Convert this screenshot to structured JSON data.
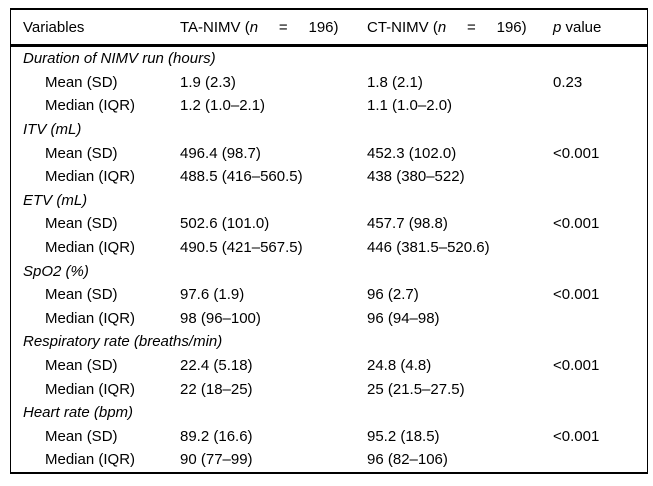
{
  "header": {
    "variables": "Variables",
    "ta": {
      "prefix": "TA-NIMV (",
      "n": "n",
      "suffix": "     =     196)"
    },
    "ct": {
      "prefix": "CT-NIMV (",
      "n": "n",
      "suffix": "     =     196)"
    },
    "pcol": {
      "p": "p",
      "rest": " value"
    }
  },
  "sections": [
    {
      "title": "Duration of NIMV run (hours)",
      "rows": [
        {
          "label": "Mean (SD)",
          "ta": "1.9 (2.3)",
          "ct": "1.8 (2.1)",
          "p": "0.23"
        },
        {
          "label": "Median (IQR)",
          "ta": "1.2 (1.0–2.1)",
          "ct": "1.1 (1.0–2.0)",
          "p": ""
        }
      ]
    },
    {
      "title": "ITV (mL)",
      "rows": [
        {
          "label": "Mean (SD)",
          "ta": "496.4 (98.7)",
          "ct": "452.3 (102.0)",
          "p": "<0.001"
        },
        {
          "label": "Median (IQR)",
          "ta": "488.5 (416–560.5)",
          "ct": "438 (380–522)",
          "p": ""
        }
      ]
    },
    {
      "title": "ETV (mL)",
      "rows": [
        {
          "label": "Mean (SD)",
          "ta": "502.6 (101.0)",
          "ct": "457.7 (98.8)",
          "p": "<0.001"
        },
        {
          "label": "Median (IQR)",
          "ta": "490.5 (421–567.5)",
          "ct": "446 (381.5–520.6)",
          "p": ""
        }
      ]
    },
    {
      "title": "SpO2 (%)",
      "rows": [
        {
          "label": "Mean (SD)",
          "ta": "97.6 (1.9)",
          "ct": "96 (2.7)",
          "p": "<0.001"
        },
        {
          "label": "Median (IQR)",
          "ta": "98 (96–100)",
          "ct": "96 (94–98)",
          "p": ""
        }
      ]
    },
    {
      "title": "Respiratory rate (breaths/min)",
      "rows": [
        {
          "label": "Mean (SD)",
          "ta": "22.4 (5.18)",
          "ct": "24.8 (4.8)",
          "p": "<0.001"
        },
        {
          "label": "Median (IQR)",
          "ta": "22 (18–25)",
          "ct": "25 (21.5–27.5)",
          "p": ""
        }
      ]
    },
    {
      "title": "Heart rate (bpm)",
      "rows": [
        {
          "label": "Mean (SD)",
          "ta": "89.2 (16.6)",
          "ct": "95.2 (18.5)",
          "p": "<0.001"
        },
        {
          "label": "Median (IQR)",
          "ta": "90 (77–99)",
          "ct": "96 (82–106)",
          "p": ""
        }
      ]
    }
  ]
}
